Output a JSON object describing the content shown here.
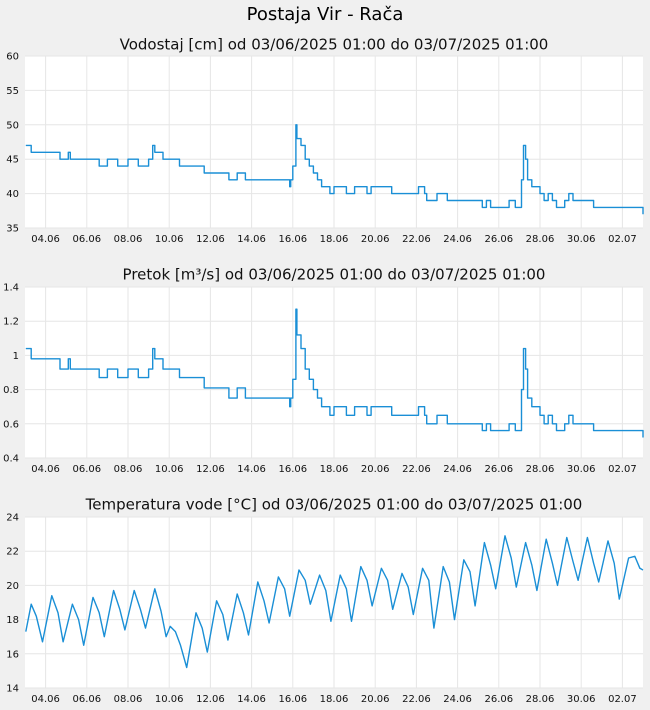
{
  "page": {
    "title": "Postaja Vir - Rača"
  },
  "chart_data": [
    {
      "type": "line",
      "title": "Vodostaj [cm] od 03/06/2025 01:00 do 03/07/2025 01:00",
      "xlabel": "",
      "ylabel": "",
      "ylim": [
        35,
        60
      ],
      "yticks": [
        35,
        40,
        45,
        50,
        55,
        60
      ],
      "ytick_labels": [
        "35",
        "40",
        "45",
        "50",
        "55",
        "60"
      ],
      "xlim": [
        3.0,
        33.0
      ],
      "xticks": [
        4,
        6,
        8,
        10,
        12,
        14,
        16,
        18,
        20,
        22,
        24,
        26,
        28,
        30,
        32
      ],
      "xtick_labels": [
        "04.06",
        "06.06",
        "08.06",
        "10.06",
        "12.06",
        "14.06",
        "16.06",
        "18.06",
        "20.06",
        "22.06",
        "24.06",
        "26.06",
        "28.06",
        "30.06",
        "02.07"
      ],
      "grid": true,
      "series": [
        {
          "color": "#1a8fd6",
          "x": [
            3.04,
            3.2,
            3.3,
            4.0,
            4.6,
            4.7,
            5.0,
            5.1,
            5.2,
            6.0,
            6.5,
            6.6,
            6.9,
            7.0,
            7.4,
            7.5,
            7.8,
            8.0,
            8.4,
            8.5,
            8.8,
            9.0,
            9.2,
            9.3,
            9.5,
            9.7,
            10.4,
            10.5,
            11.6,
            11.7,
            12.8,
            12.9,
            13.2,
            13.3,
            13.6,
            13.7,
            14.0,
            15.0,
            15.8,
            15.85,
            15.9,
            16.0,
            16.15,
            16.2,
            16.4,
            16.6,
            16.8,
            17.0,
            17.2,
            17.4,
            17.6,
            17.8,
            18.0,
            18.5,
            18.6,
            19.0,
            19.5,
            19.6,
            19.8,
            20.0,
            20.7,
            20.8,
            21.7,
            22.0,
            22.1,
            22.4,
            22.5,
            22.9,
            23.0,
            23.4,
            23.5,
            24.0,
            24.1,
            24.9,
            25.2,
            25.4,
            25.6,
            26.0,
            26.4,
            26.5,
            26.8,
            27.0,
            27.1,
            27.2,
            27.3,
            27.4,
            27.6,
            27.8,
            28.0,
            28.2,
            28.4,
            28.6,
            28.8,
            29.0,
            29.2,
            29.4,
            29.6,
            29.8,
            30.0,
            30.4,
            30.6,
            31.0,
            31.4,
            31.6,
            32.0,
            32.3,
            32.5,
            32.9,
            33.0
          ],
          "y": [
            47,
            47,
            46,
            46,
            46,
            45,
            45,
            46,
            45,
            45,
            45,
            44,
            44,
            45,
            45,
            44,
            44,
            45,
            45,
            44,
            44,
            45,
            47,
            46,
            46,
            45,
            45,
            44,
            44,
            43,
            43,
            42,
            42,
            43,
            43,
            42,
            42,
            42,
            42,
            41,
            42,
            44,
            50,
            48,
            47,
            45,
            44,
            43,
            42,
            41,
            41,
            40,
            41,
            41,
            40,
            41,
            41,
            40,
            41,
            41,
            41,
            40,
            40,
            40,
            41,
            40,
            39,
            39,
            40,
            40,
            39,
            39,
            39,
            39,
            38,
            39,
            38,
            38,
            38,
            39,
            38,
            38,
            42,
            47,
            45,
            42,
            41,
            41,
            40,
            39,
            40,
            39,
            38,
            38,
            39,
            40,
            39,
            39,
            39,
            39,
            38,
            38,
            38,
            38,
            38,
            38,
            38,
            38,
            37
          ]
        }
      ]
    },
    {
      "type": "line",
      "title": "Pretok [m³/s] od 03/06/2025 01:00 do 03/07/2025 01:00",
      "xlabel": "",
      "ylabel": "",
      "ylim": [
        0.4,
        1.4
      ],
      "yticks": [
        0.4,
        0.6,
        0.8,
        1.0,
        1.2,
        1.4
      ],
      "ytick_labels": [
        "0.4",
        "0.6",
        "0.8",
        "1",
        "1.2",
        "1.4"
      ],
      "xlim": [
        3.0,
        33.0
      ],
      "xticks": [
        4,
        6,
        8,
        10,
        12,
        14,
        16,
        18,
        20,
        22,
        24,
        26,
        28,
        30,
        32
      ],
      "xtick_labels": [
        "04.06",
        "06.06",
        "08.06",
        "10.06",
        "12.06",
        "14.06",
        "16.06",
        "18.06",
        "20.06",
        "22.06",
        "24.06",
        "26.06",
        "28.06",
        "30.06",
        "02.07"
      ],
      "grid": true,
      "series": [
        {
          "color": "#1a8fd6",
          "x": [
            3.04,
            3.2,
            3.3,
            4.0,
            4.6,
            4.7,
            5.0,
            5.1,
            5.2,
            6.0,
            6.5,
            6.6,
            6.9,
            7.0,
            7.4,
            7.5,
            7.8,
            8.0,
            8.4,
            8.5,
            8.8,
            9.0,
            9.2,
            9.3,
            9.5,
            9.7,
            10.4,
            10.5,
            11.6,
            11.7,
            12.8,
            12.9,
            13.2,
            13.3,
            13.6,
            13.7,
            14.0,
            15.0,
            15.8,
            15.85,
            15.9,
            16.0,
            16.15,
            16.2,
            16.4,
            16.6,
            16.8,
            17.0,
            17.2,
            17.4,
            17.6,
            17.8,
            18.0,
            18.5,
            18.6,
            19.0,
            19.5,
            19.6,
            19.8,
            20.0,
            20.7,
            20.8,
            21.7,
            22.0,
            22.1,
            22.4,
            22.5,
            22.9,
            23.0,
            23.4,
            23.5,
            24.0,
            24.1,
            24.9,
            25.2,
            25.4,
            25.6,
            26.0,
            26.4,
            26.5,
            26.8,
            27.0,
            27.1,
            27.2,
            27.3,
            27.4,
            27.6,
            27.8,
            28.0,
            28.2,
            28.4,
            28.6,
            28.8,
            29.0,
            29.2,
            29.4,
            29.6,
            29.8,
            30.0,
            30.4,
            30.6,
            31.0,
            31.4,
            31.6,
            32.0,
            32.3,
            32.5,
            32.9,
            33.0
          ],
          "y": [
            1.04,
            1.04,
            0.98,
            0.98,
            0.98,
            0.92,
            0.92,
            0.98,
            0.92,
            0.92,
            0.92,
            0.87,
            0.87,
            0.92,
            0.92,
            0.87,
            0.87,
            0.92,
            0.92,
            0.87,
            0.87,
            0.92,
            1.04,
            0.98,
            0.98,
            0.92,
            0.92,
            0.87,
            0.87,
            0.81,
            0.81,
            0.75,
            0.75,
            0.81,
            0.81,
            0.75,
            0.75,
            0.75,
            0.75,
            0.7,
            0.75,
            0.86,
            1.27,
            1.12,
            1.04,
            0.92,
            0.86,
            0.8,
            0.75,
            0.7,
            0.7,
            0.65,
            0.7,
            0.7,
            0.65,
            0.7,
            0.7,
            0.65,
            0.7,
            0.7,
            0.7,
            0.65,
            0.65,
            0.65,
            0.7,
            0.65,
            0.6,
            0.6,
            0.65,
            0.65,
            0.6,
            0.6,
            0.6,
            0.6,
            0.56,
            0.6,
            0.56,
            0.56,
            0.56,
            0.6,
            0.56,
            0.56,
            0.8,
            1.04,
            0.92,
            0.75,
            0.7,
            0.7,
            0.65,
            0.6,
            0.65,
            0.6,
            0.56,
            0.56,
            0.6,
            0.65,
            0.6,
            0.6,
            0.6,
            0.6,
            0.56,
            0.56,
            0.56,
            0.56,
            0.56,
            0.56,
            0.56,
            0.56,
            0.52
          ]
        }
      ]
    },
    {
      "type": "line",
      "title": "Temperatura vode [°C] od 03/06/2025 01:00 do 03/07/2025 01:00",
      "xlabel": "",
      "ylabel": "",
      "ylim": [
        14,
        24
      ],
      "yticks": [
        14,
        16,
        18,
        20,
        22,
        24
      ],
      "ytick_labels": [
        "14",
        "16",
        "18",
        "20",
        "22",
        "24"
      ],
      "xlim": [
        3.0,
        33.0
      ],
      "xticks": [
        4,
        6,
        8,
        10,
        12,
        14,
        16,
        18,
        20,
        22,
        24,
        26,
        28,
        30,
        32
      ],
      "xtick_labels": [
        "04.06",
        "06.06",
        "08.06",
        "10.06",
        "12.06",
        "14.06",
        "16.06",
        "18.06",
        "20.06",
        "22.06",
        "24.06",
        "26.06",
        "28.06",
        "30.06",
        "02.07"
      ],
      "grid": true,
      "series": [
        {
          "color": "#1a8fd6",
          "x": [
            3.04,
            3.3,
            3.55,
            3.85,
            4.3,
            4.6,
            4.85,
            5.3,
            5.6,
            5.85,
            6.3,
            6.6,
            6.85,
            7.3,
            7.6,
            7.85,
            8.3,
            8.6,
            8.85,
            9.3,
            9.6,
            9.85,
            10.05,
            10.3,
            10.55,
            10.85,
            11.3,
            11.6,
            11.85,
            12.3,
            12.6,
            12.85,
            13.3,
            13.6,
            13.85,
            14.3,
            14.6,
            14.85,
            15.3,
            15.6,
            15.85,
            16.3,
            16.6,
            16.85,
            17.3,
            17.6,
            17.85,
            18.3,
            18.6,
            18.85,
            19.3,
            19.6,
            19.85,
            20.3,
            20.6,
            20.85,
            21.3,
            21.6,
            21.85,
            22.3,
            22.6,
            22.85,
            23.3,
            23.6,
            23.85,
            24.3,
            24.6,
            24.85,
            25.3,
            25.6,
            25.85,
            26.3,
            26.6,
            26.85,
            27.3,
            27.6,
            27.85,
            28.3,
            28.6,
            28.85,
            29.3,
            29.6,
            29.85,
            30.3,
            30.6,
            30.85,
            31.3,
            31.6,
            31.85,
            32.3,
            32.6,
            32.85,
            33.0
          ],
          "y": [
            17.3,
            18.9,
            18.2,
            16.7,
            19.4,
            18.4,
            16.7,
            18.9,
            18.0,
            16.5,
            19.3,
            18.4,
            17.0,
            19.7,
            18.6,
            17.4,
            19.7,
            18.6,
            17.5,
            19.8,
            18.5,
            17.0,
            17.6,
            17.3,
            16.5,
            15.2,
            18.4,
            17.5,
            16.1,
            19.1,
            18.3,
            16.8,
            19.5,
            18.4,
            17.1,
            20.2,
            19.1,
            17.8,
            20.5,
            19.8,
            18.2,
            20.9,
            20.3,
            18.9,
            20.6,
            19.7,
            17.9,
            20.6,
            19.8,
            17.9,
            21.1,
            20.3,
            18.8,
            21.0,
            20.3,
            18.6,
            20.7,
            19.9,
            18.3,
            21.0,
            20.3,
            17.5,
            21.1,
            20.2,
            18.0,
            21.5,
            20.8,
            18.8,
            22.5,
            21.2,
            19.8,
            22.9,
            21.6,
            19.9,
            22.5,
            21.2,
            19.7,
            22.7,
            21.3,
            20.0,
            22.8,
            21.4,
            20.3,
            22.8,
            21.3,
            20.2,
            22.6,
            21.3,
            19.2,
            21.6,
            21.7,
            21.0,
            20.9
          ]
        }
      ]
    }
  ]
}
